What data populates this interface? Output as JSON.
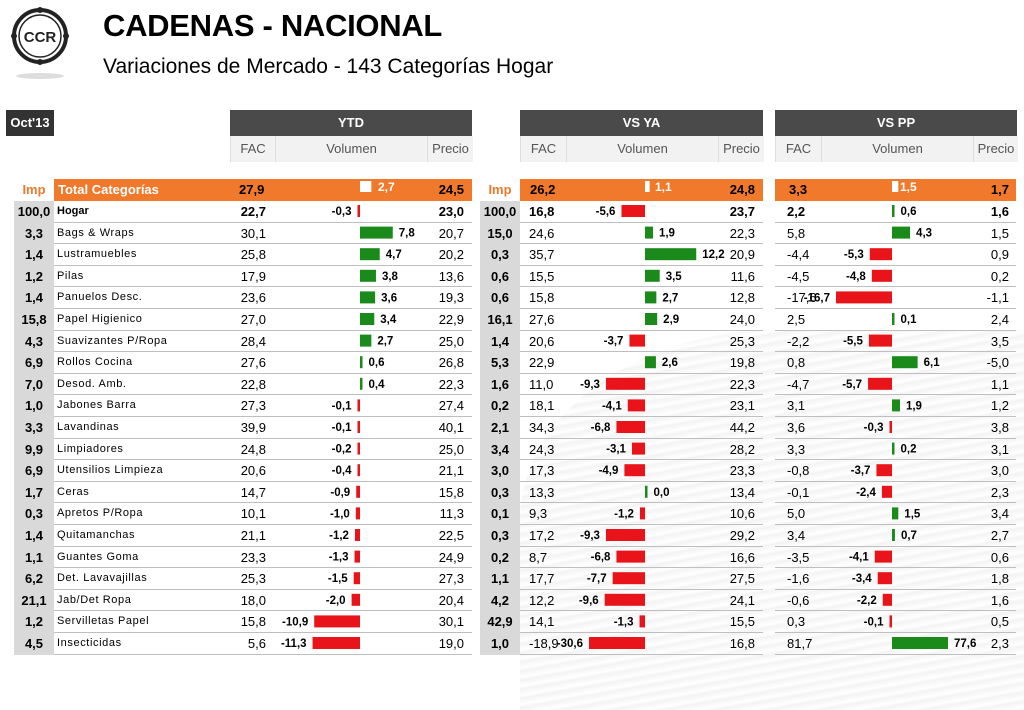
{
  "logo_text": "CCR",
  "title": "CADENAS - NACIONAL",
  "subtitle": "Variaciones de Mercado - 143 Categorías Hogar",
  "period": "Oct'13",
  "groups": [
    "YTD",
    "VS YA",
    "VS PP"
  ],
  "sub_headers": [
    "FAC",
    "Volumen",
    "Precio"
  ],
  "total": {
    "imp": "Imp",
    "name": "Total  Categorías",
    "ytd": [
      "27,9",
      "2,7",
      "24,5"
    ],
    "imp2": "Imp",
    "ya": [
      "26,2",
      "1,1",
      "24,8"
    ],
    "pp": [
      "3,3",
      "1,5",
      "1,7"
    ]
  },
  "colors": {
    "positive": "#1a8a1a",
    "negative": "#e8141a",
    "total_row": "#f0792b"
  },
  "chart_data": {
    "type": "table",
    "columns": [
      "Imp",
      "Categoría",
      "YTD FAC",
      "YTD Volumen",
      "YTD Precio",
      "Imp",
      "VS YA FAC",
      "VS YA Volumen",
      "VS YA Precio",
      "VS PP FAC",
      "VS PP Volumen",
      "VS PP Precio"
    ],
    "rows": [
      {
        "imp": "100,0",
        "name": "Hogar",
        "ytd": [
          "22,7",
          "-0,3",
          "23,0"
        ],
        "imp2": "100,0",
        "ya": [
          "16,8",
          "-5,6",
          "23,7"
        ],
        "pp": [
          "2,2",
          "0,6",
          "1,6"
        ],
        "vol": [
          -0.3,
          -5.6,
          0.6
        ]
      },
      {
        "imp": "3,3",
        "name": "Bags & Wraps",
        "ytd": [
          "30,1",
          "7,8",
          "20,7"
        ],
        "imp2": "15,0",
        "ya": [
          "24,6",
          "1,9",
          "22,3"
        ],
        "pp": [
          "5,8",
          "4,3",
          "1,5"
        ],
        "vol": [
          7.8,
          1.9,
          4.3
        ]
      },
      {
        "imp": "1,4",
        "name": "Lustramuebles",
        "ytd": [
          "25,8",
          "4,7",
          "20,2"
        ],
        "imp2": "0,3",
        "ya": [
          "35,7",
          "12,2",
          "20,9"
        ],
        "pp": [
          "-4,4",
          "-5,3",
          "0,9"
        ],
        "vol": [
          4.7,
          12.2,
          -5.3
        ]
      },
      {
        "imp": "1,2",
        "name": "Pilas",
        "ytd": [
          "17,9",
          "3,8",
          "13,6"
        ],
        "imp2": "0,6",
        "ya": [
          "15,5",
          "3,5",
          "11,6"
        ],
        "pp": [
          "-4,5",
          "-4,8",
          "0,2"
        ],
        "vol": [
          3.8,
          3.5,
          -4.8
        ]
      },
      {
        "imp": "1,4",
        "name": "Panuelos Desc.",
        "ytd": [
          "23,6",
          "3,6",
          "19,3"
        ],
        "imp2": "0,6",
        "ya": [
          "15,8",
          "2,7",
          "12,8"
        ],
        "pp": [
          "-17,6",
          "-16,7",
          "-1,1"
        ],
        "vol": [
          3.6,
          2.7,
          -16.7
        ]
      },
      {
        "imp": "15,8",
        "name": "Papel Higienico",
        "ytd": [
          "27,0",
          "3,4",
          "22,9"
        ],
        "imp2": "16,1",
        "ya": [
          "27,6",
          "2,9",
          "24,0"
        ],
        "pp": [
          "2,5",
          "0,1",
          "2,4"
        ],
        "vol": [
          3.4,
          2.9,
          0.1
        ]
      },
      {
        "imp": "4,3",
        "name": "Suavizantes P/Ropa",
        "ytd": [
          "28,4",
          "2,7",
          "25,0"
        ],
        "imp2": "1,4",
        "ya": [
          "20,6",
          "-3,7",
          "25,3"
        ],
        "pp": [
          "-2,2",
          "-5,5",
          "3,5"
        ],
        "vol": [
          2.7,
          -3.7,
          -5.5
        ]
      },
      {
        "imp": "6,9",
        "name": "Rollos Cocina",
        "ytd": [
          "27,6",
          "0,6",
          "26,8"
        ],
        "imp2": "5,3",
        "ya": [
          "22,9",
          "2,6",
          "19,8"
        ],
        "pp": [
          "0,8",
          "6,1",
          "-5,0"
        ],
        "vol": [
          0.6,
          2.6,
          6.1
        ]
      },
      {
        "imp": "7,0",
        "name": "Desod. Amb.",
        "ytd": [
          "22,8",
          "0,4",
          "22,3"
        ],
        "imp2": "1,6",
        "ya": [
          "11,0",
          "-9,3",
          "22,3"
        ],
        "pp": [
          "-4,7",
          "-5,7",
          "1,1"
        ],
        "vol": [
          0.4,
          -9.3,
          -5.7
        ]
      },
      {
        "imp": "1,0",
        "name": "Jabones Barra",
        "ytd": [
          "27,3",
          "-0,1",
          "27,4"
        ],
        "imp2": "0,2",
        "ya": [
          "18,1",
          "-4,1",
          "23,1"
        ],
        "pp": [
          "3,1",
          "1,9",
          "1,2"
        ],
        "vol": [
          -0.1,
          -4.1,
          1.9
        ]
      },
      {
        "imp": "3,3",
        "name": "Lavandinas",
        "ytd": [
          "39,9",
          "-0,1",
          "40,1"
        ],
        "imp2": "2,1",
        "ya": [
          "34,3",
          "-6,8",
          "44,2"
        ],
        "pp": [
          "3,6",
          "-0,3",
          "3,8"
        ],
        "vol": [
          -0.1,
          -6.8,
          -0.3
        ]
      },
      {
        "imp": "9,9",
        "name": "Limpiadores",
        "ytd": [
          "24,8",
          "-0,2",
          "25,0"
        ],
        "imp2": "3,4",
        "ya": [
          "24,3",
          "-3,1",
          "28,2"
        ],
        "pp": [
          "3,3",
          "0,2",
          "3,1"
        ],
        "vol": [
          -0.2,
          -3.1,
          0.2
        ]
      },
      {
        "imp": "6,9",
        "name": "Utensilios Limpieza",
        "ytd": [
          "20,6",
          "-0,4",
          "21,1"
        ],
        "imp2": "3,0",
        "ya": [
          "17,3",
          "-4,9",
          "23,3"
        ],
        "pp": [
          "-0,8",
          "-3,7",
          "3,0"
        ],
        "vol": [
          -0.4,
          -4.9,
          -3.7
        ]
      },
      {
        "imp": "1,7",
        "name": "Ceras",
        "ytd": [
          "14,7",
          "-0,9",
          "15,8"
        ],
        "imp2": "0,3",
        "ya": [
          "13,3",
          "0,0",
          "13,4"
        ],
        "pp": [
          "-0,1",
          "-2,4",
          "2,3"
        ],
        "vol": [
          -0.9,
          0.0,
          -2.4
        ]
      },
      {
        "imp": "0,3",
        "name": "Apretos P/Ropa",
        "ytd": [
          "10,1",
          "-1,0",
          "11,3"
        ],
        "imp2": "0,1",
        "ya": [
          "9,3",
          "-1,2",
          "10,6"
        ],
        "pp": [
          "5,0",
          "1,5",
          "3,4"
        ],
        "vol": [
          -1.0,
          -1.2,
          1.5
        ]
      },
      {
        "imp": "1,4",
        "name": "Quitamanchas",
        "ytd": [
          "21,1",
          "-1,2",
          "22,5"
        ],
        "imp2": "0,3",
        "ya": [
          "17,2",
          "-9,3",
          "29,2"
        ],
        "pp": [
          "3,4",
          "0,7",
          "2,7"
        ],
        "vol": [
          -1.2,
          -9.3,
          0.7
        ]
      },
      {
        "imp": "1,1",
        "name": "Guantes Goma",
        "ytd": [
          "23,3",
          "-1,3",
          "24,9"
        ],
        "imp2": "0,2",
        "ya": [
          "8,7",
          "-6,8",
          "16,6"
        ],
        "pp": [
          "-3,5",
          "-4,1",
          "0,6"
        ],
        "vol": [
          -1.3,
          -6.8,
          -4.1
        ]
      },
      {
        "imp": "6,2",
        "name": "Det. Lavavajillas",
        "ytd": [
          "25,3",
          "-1,5",
          "27,3"
        ],
        "imp2": "1,1",
        "ya": [
          "17,7",
          "-7,7",
          "27,5"
        ],
        "pp": [
          "-1,6",
          "-3,4",
          "1,8"
        ],
        "vol": [
          -1.5,
          -7.7,
          -3.4
        ]
      },
      {
        "imp": "21,1",
        "name": "Jab/Det Ropa",
        "ytd": [
          "18,0",
          "-2,0",
          "20,4"
        ],
        "imp2": "4,2",
        "ya": [
          "12,2",
          "-9,6",
          "24,1"
        ],
        "pp": [
          "-0,6",
          "-2,2",
          "1,6"
        ],
        "vol": [
          -2.0,
          -9.6,
          -2.2
        ]
      },
      {
        "imp": "1,2",
        "name": "Servilletas Papel",
        "ytd": [
          "15,8",
          "-10,9",
          "30,1"
        ],
        "imp2": "42,9",
        "ya": [
          "14,1",
          "-1,3",
          "15,5"
        ],
        "pp": [
          "0,3",
          "-0,1",
          "0,5"
        ],
        "vol": [
          -10.9,
          -1.3,
          -0.1
        ]
      },
      {
        "imp": "4,5",
        "name": "Insecticidas",
        "ytd": [
          "5,6",
          "-11,3",
          "19,0"
        ],
        "imp2": "1,0",
        "ya": [
          "-18,9",
          "-30,6",
          "16,8"
        ],
        "pp": [
          "81,7",
          "77,6",
          "2,3"
        ],
        "vol": [
          -11.3,
          -30.6,
          77.6
        ]
      }
    ],
    "total_vol": [
      2.7,
      1.1,
      1.5
    ]
  }
}
